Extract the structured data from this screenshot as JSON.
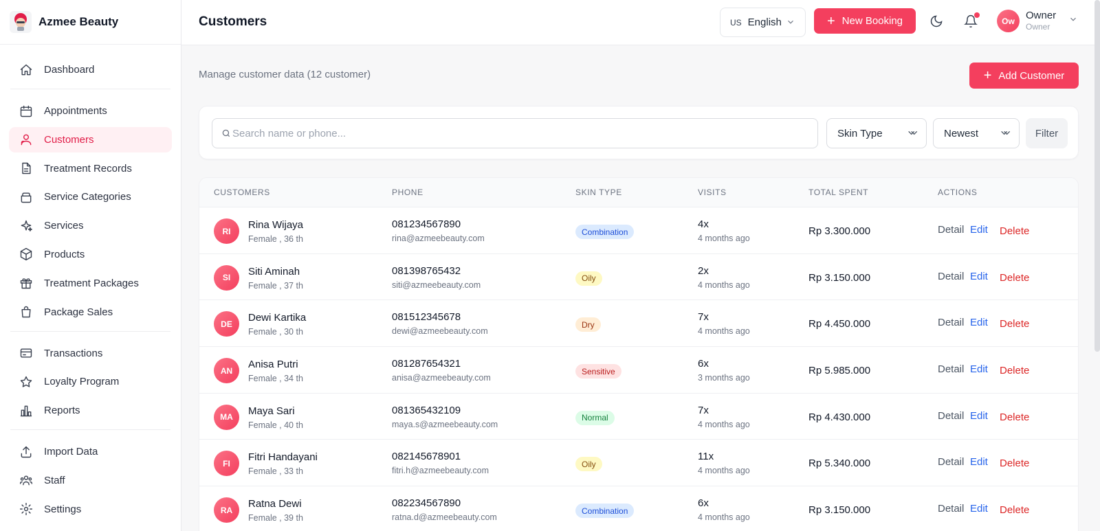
{
  "brand": {
    "name": "Azmee Beauty"
  },
  "sidebar": {
    "items": [
      {
        "label": "Dashboard",
        "icon": "home-icon",
        "active": false
      },
      {
        "label": "Appointments",
        "icon": "calendar-icon",
        "active": false
      },
      {
        "label": "Customers",
        "icon": "users-icon",
        "active": true
      },
      {
        "label": "Treatment Records",
        "icon": "document-icon",
        "active": false
      },
      {
        "label": "Service Categories",
        "icon": "layers-icon",
        "active": false
      },
      {
        "label": "Services",
        "icon": "sparkles-icon",
        "active": false
      },
      {
        "label": "Products",
        "icon": "box-icon",
        "active": false
      },
      {
        "label": "Treatment Packages",
        "icon": "gift-icon",
        "active": false
      },
      {
        "label": "Package Sales",
        "icon": "shopping-bag-icon",
        "active": false
      },
      {
        "label": "Transactions",
        "icon": "credit-card-icon",
        "active": false
      },
      {
        "label": "Loyalty Program",
        "icon": "star-icon",
        "active": false
      },
      {
        "label": "Reports",
        "icon": "bar-chart-icon",
        "active": false
      },
      {
        "label": "Import Data",
        "icon": "upload-icon",
        "active": false
      },
      {
        "label": "Staff",
        "icon": "team-icon",
        "active": false
      },
      {
        "label": "Settings",
        "icon": "gear-icon",
        "active": false
      }
    ]
  },
  "header": {
    "title": "Customers",
    "language": {
      "flag": "US",
      "label": "English"
    },
    "new_booking": "New Booking",
    "user": {
      "initials": "Ow",
      "name": "Owner",
      "role": "Owner"
    }
  },
  "main": {
    "subtitle": "Manage customer data (12 customer)",
    "add_customer": "Add Customer",
    "search": {
      "placeholder": "Search name or phone...",
      "value": ""
    },
    "skin_type_filter": "Skin Type",
    "sort": "Newest",
    "filter_button": "Filter",
    "table": {
      "columns": [
        "CUSTOMERS",
        "PHONE",
        "SKIN TYPE",
        "VISITS",
        "TOTAL SPENT",
        "ACTIONS"
      ],
      "actions": {
        "detail": "Detail",
        "edit": "Edit",
        "delete": "Delete"
      },
      "rows": [
        {
          "initials": "RI",
          "name": "Rina Wijaya",
          "sub": "Female , 36 th",
          "phone": "081234567890",
          "email": "rina@azmeebeauty.com",
          "skin": "Combination",
          "visits": "4x",
          "last": "4 months ago",
          "spent": "Rp 3.300.000"
        },
        {
          "initials": "SI",
          "name": "Siti Aminah",
          "sub": "Female , 37 th",
          "phone": "081398765432",
          "email": "siti@azmeebeauty.com",
          "skin": "Oily",
          "visits": "2x",
          "last": "4 months ago",
          "spent": "Rp 3.150.000"
        },
        {
          "initials": "DE",
          "name": "Dewi Kartika",
          "sub": "Female , 30 th",
          "phone": "081512345678",
          "email": "dewi@azmeebeauty.com",
          "skin": "Dry",
          "visits": "7x",
          "last": "4 months ago",
          "spent": "Rp 4.450.000"
        },
        {
          "initials": "AN",
          "name": "Anisa Putri",
          "sub": "Female , 34 th",
          "phone": "081287654321",
          "email": "anisa@azmeebeauty.com",
          "skin": "Sensitive",
          "visits": "6x",
          "last": "3 months ago",
          "spent": "Rp 5.985.000"
        },
        {
          "initials": "MA",
          "name": "Maya Sari",
          "sub": "Female , 40 th",
          "phone": "081365432109",
          "email": "maya.s@azmeebeauty.com",
          "skin": "Normal",
          "visits": "7x",
          "last": "4 months ago",
          "spent": "Rp 4.430.000"
        },
        {
          "initials": "FI",
          "name": "Fitri Handayani",
          "sub": "Female , 33 th",
          "phone": "082145678901",
          "email": "fitri.h@azmeebeauty.com",
          "skin": "Oily",
          "visits": "11x",
          "last": "4 months ago",
          "spent": "Rp 5.340.000"
        },
        {
          "initials": "RA",
          "name": "Ratna Dewi",
          "sub": "Female , 39 th",
          "phone": "082234567890",
          "email": "ratna.d@azmeebeauty.com",
          "skin": "Combination",
          "visits": "6x",
          "last": "4 months ago",
          "spent": "Rp 3.150.000"
        }
      ]
    }
  },
  "colors": {
    "accent": "#f43f5e",
    "active_bg": "#fff0f3",
    "badges": {
      "Combination": {
        "bg": "#dbeafe",
        "fg": "#1d4ed8"
      },
      "Oily": {
        "bg": "#fef9c3",
        "fg": "#854d0e"
      },
      "Dry": {
        "bg": "#ffedd5",
        "fg": "#9a3412"
      },
      "Sensitive": {
        "bg": "#fee2e2",
        "fg": "#b91c1c"
      },
      "Normal": {
        "bg": "#dcfce7",
        "fg": "#15803d"
      }
    }
  }
}
